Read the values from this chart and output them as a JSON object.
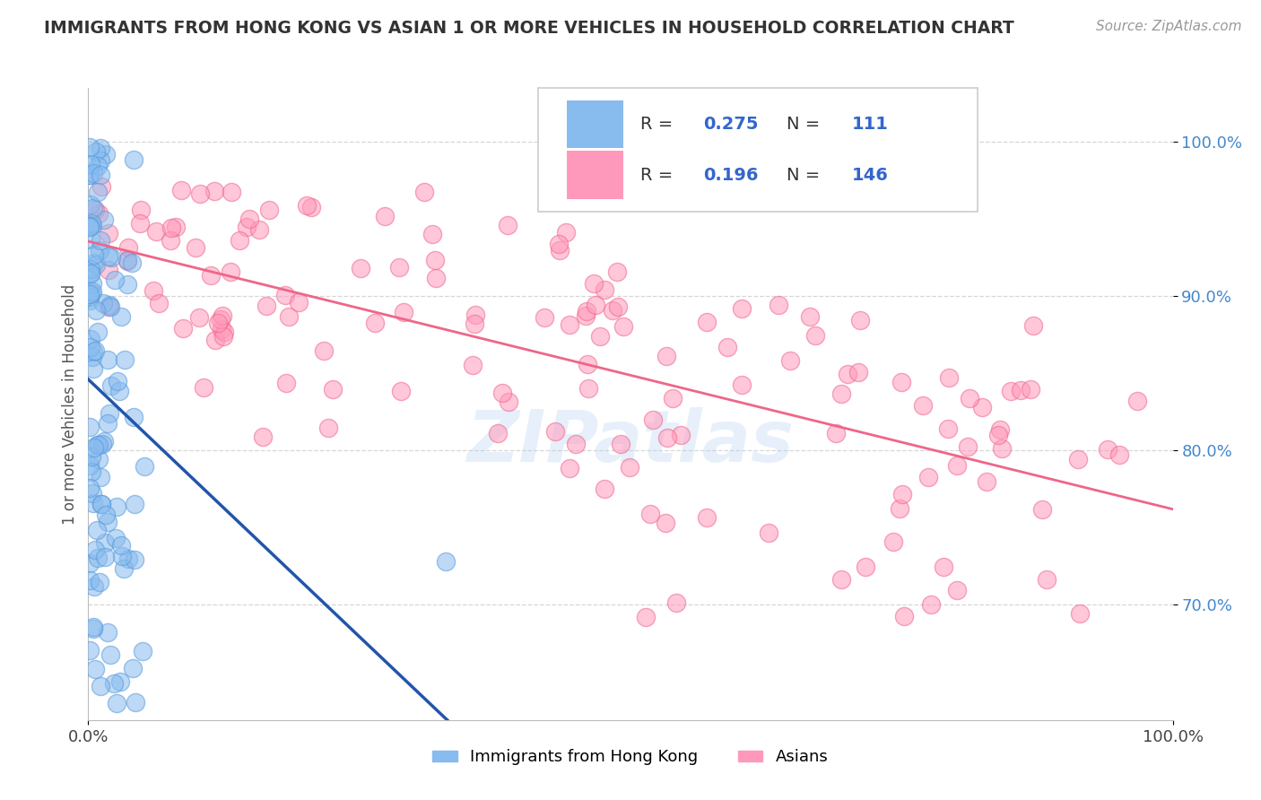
{
  "title": "IMMIGRANTS FROM HONG KONG VS ASIAN 1 OR MORE VEHICLES IN HOUSEHOLD CORRELATION CHART",
  "source": "Source: ZipAtlas.com",
  "ylabel": "1 or more Vehicles in Household",
  "blue_R": 0.275,
  "blue_N": 111,
  "pink_R": 0.196,
  "pink_N": 146,
  "blue_label": "Immigrants from Hong Kong",
  "pink_label": "Asians",
  "blue_color": "#88BBEE",
  "pink_color": "#FF99BB",
  "blue_edge_color": "#5599DD",
  "pink_edge_color": "#EE6688",
  "blue_line_color": "#2255AA",
  "pink_line_color": "#EE6688",
  "legend_color": "#3366CC",
  "title_color": "#333333",
  "source_color": "#999999",
  "ytick_color": "#4488CC",
  "watermark": "ZIPatlas",
  "watermark_color": "#AACCEE",
  "xlim": [
    0.0,
    1.0
  ],
  "ylim": [
    0.625,
    1.035
  ],
  "y_ticks": [
    0.7,
    0.8,
    0.9,
    1.0
  ],
  "y_tick_labels": [
    "70.0%",
    "80.0%",
    "90.0%",
    "100.0%"
  ],
  "x_ticks": [
    0.0,
    1.0
  ],
  "x_tick_labels": [
    "0.0%",
    "100.0%"
  ],
  "blue_seed": 42,
  "pink_seed": 99
}
